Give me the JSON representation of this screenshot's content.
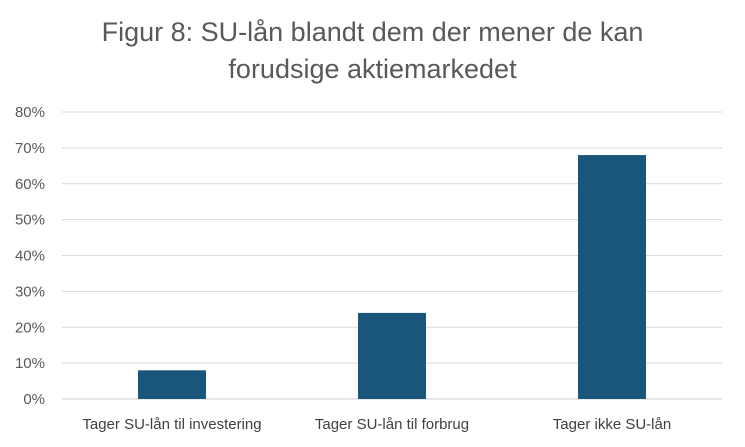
{
  "chart_data": {
    "type": "bar",
    "title_lines": [
      "Figur 8: SU-lån blandt dem der mener de kan",
      "forudsige aktiemarkedet"
    ],
    "categories": [
      "Tager SU-lån til investering",
      "Tager SU-lån til forbrug",
      "Tager ikke SU-lån"
    ],
    "values": [
      0.08,
      0.24,
      0.68
    ],
    "ylim": [
      0,
      0.8
    ],
    "yticks": [
      "0%",
      "10%",
      "20%",
      "30%",
      "40%",
      "50%",
      "60%",
      "70%",
      "80%"
    ],
    "bar_color": "#1a567c",
    "grid_color": "#d9d9d9",
    "grid": true
  }
}
